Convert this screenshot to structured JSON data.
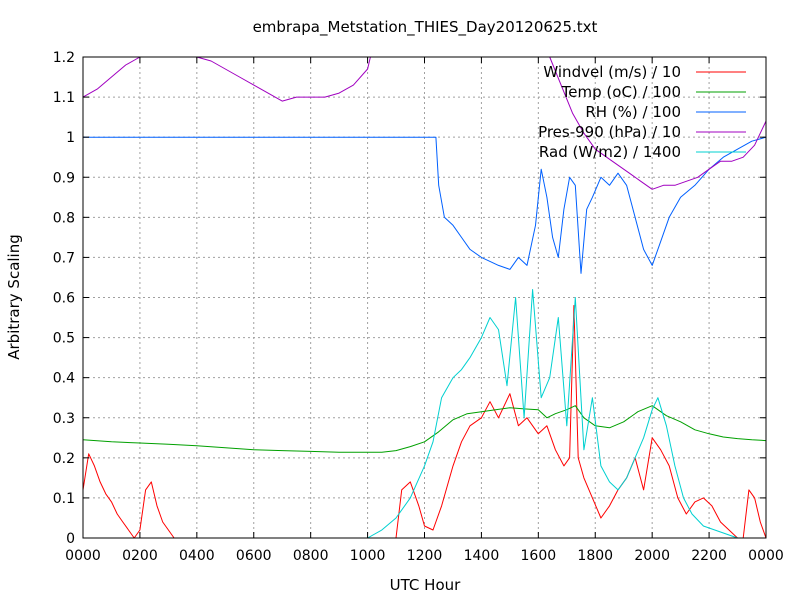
{
  "chart_data": {
    "type": "line",
    "title": "embrapa_Metstation_THIES_Day20120625.txt",
    "xlabel": "UTC Hour",
    "ylabel": "Arbitrary Scaling",
    "xlim": [
      0,
      24
    ],
    "ylim": [
      0,
      1.2
    ],
    "x_tick_labels": [
      "0000",
      "0200",
      "0400",
      "0600",
      "0800",
      "1000",
      "1200",
      "1400",
      "1600",
      "1800",
      "2000",
      "2200",
      "0000"
    ],
    "y_tick_labels": [
      "0",
      "0.1",
      "0.2",
      "0.3",
      "0.4",
      "0.5",
      "0.6",
      "0.7",
      "0.8",
      "0.9",
      "1",
      "1.1",
      "1.2"
    ],
    "grid": true,
    "legend_position": "top-right",
    "series": [
      {
        "name": "Windvel (m/s) / 10",
        "color": "#ff0000",
        "x": [
          0.0,
          0.2,
          0.4,
          0.6,
          0.8,
          1.0,
          1.2,
          1.4,
          1.6,
          1.8,
          2.0,
          2.2,
          2.4,
          2.6,
          2.8,
          3.0,
          3.2,
          11.0,
          11.2,
          11.5,
          11.8,
          12.0,
          12.3,
          12.6,
          13.0,
          13.3,
          13.6,
          14.0,
          14.3,
          14.6,
          15.0,
          15.3,
          15.6,
          16.0,
          16.3,
          16.6,
          16.9,
          17.1,
          17.25,
          17.4,
          17.6,
          17.9,
          18.2,
          18.5,
          18.8,
          19.1,
          19.4,
          19.7,
          20.0,
          20.3,
          20.6,
          20.9,
          21.2,
          21.5,
          21.8,
          22.1,
          22.4,
          22.7,
          23.0,
          23.2,
          23.4,
          23.6,
          23.8,
          24.0
        ],
        "values": [
          0.12,
          0.21,
          0.18,
          0.14,
          0.11,
          0.09,
          0.06,
          0.04,
          0.02,
          0.0,
          0.02,
          0.12,
          0.14,
          0.08,
          0.04,
          0.02,
          0.0,
          0.0,
          0.12,
          0.14,
          0.08,
          0.03,
          0.02,
          0.08,
          0.18,
          0.24,
          0.28,
          0.3,
          0.34,
          0.3,
          0.36,
          0.28,
          0.3,
          0.26,
          0.28,
          0.22,
          0.18,
          0.2,
          0.58,
          0.2,
          0.15,
          0.1,
          0.05,
          0.08,
          0.12,
          0.15,
          0.2,
          0.12,
          0.25,
          0.22,
          0.18,
          0.1,
          0.06,
          0.09,
          0.1,
          0.08,
          0.04,
          0.02,
          0.0,
          0.0,
          0.12,
          0.1,
          0.04,
          0.0
        ]
      },
      {
        "name": "Temp (oC) / 100",
        "color": "#00a000",
        "x": [
          0,
          1,
          2,
          3,
          4,
          5,
          6,
          7,
          8,
          9,
          10,
          10.5,
          11,
          11.5,
          12,
          12.5,
          13,
          13.5,
          14,
          14.5,
          15,
          15.5,
          16,
          16.3,
          16.6,
          17,
          17.3,
          17.6,
          18,
          18.5,
          19,
          19.5,
          20,
          20.5,
          21,
          21.5,
          22,
          22.5,
          23,
          23.5,
          24
        ],
        "values": [
          0.245,
          0.24,
          0.237,
          0.234,
          0.23,
          0.225,
          0.22,
          0.218,
          0.216,
          0.214,
          0.214,
          0.214,
          0.218,
          0.228,
          0.24,
          0.265,
          0.295,
          0.31,
          0.315,
          0.32,
          0.325,
          0.322,
          0.32,
          0.3,
          0.31,
          0.32,
          0.33,
          0.3,
          0.28,
          0.275,
          0.29,
          0.315,
          0.33,
          0.305,
          0.29,
          0.27,
          0.26,
          0.252,
          0.248,
          0.245,
          0.243
        ]
      },
      {
        "name": "RH (%) / 100",
        "color": "#0060ff",
        "x": [
          0,
          2,
          4,
          6,
          8,
          10,
          11,
          12,
          12.4,
          12.5,
          12.7,
          13,
          13.3,
          13.6,
          14,
          14.3,
          14.6,
          15,
          15.3,
          15.6,
          15.9,
          16.1,
          16.3,
          16.5,
          16.7,
          16.9,
          17.1,
          17.3,
          17.5,
          17.7,
          17.9,
          18.2,
          18.5,
          18.8,
          19.1,
          19.4,
          19.7,
          20.0,
          20.3,
          20.6,
          21.0,
          21.5,
          22.0,
          22.5,
          23.0,
          23.5,
          24.0
        ],
        "values": [
          1,
          1,
          1,
          1,
          1,
          1,
          1,
          1,
          1,
          0.88,
          0.8,
          0.78,
          0.75,
          0.72,
          0.7,
          0.69,
          0.68,
          0.67,
          0.7,
          0.68,
          0.78,
          0.92,
          0.85,
          0.75,
          0.7,
          0.82,
          0.9,
          0.88,
          0.66,
          0.82,
          0.85,
          0.9,
          0.88,
          0.91,
          0.88,
          0.8,
          0.72,
          0.68,
          0.74,
          0.8,
          0.85,
          0.88,
          0.92,
          0.95,
          0.97,
          0.99,
          1.0
        ]
      },
      {
        "name": "Pres-990 (hPa) / 10",
        "color": "#a000c0",
        "x": [
          0,
          0.5,
          1,
          1.5,
          2,
          2.5,
          3,
          3.5,
          4,
          4.5,
          5,
          5.5,
          6,
          6.5,
          7,
          7.5,
          8,
          8.5,
          9,
          9.5,
          10,
          10.1,
          16.4,
          16.8,
          17.2,
          17.6,
          18,
          18.4,
          18.8,
          19.2,
          19.6,
          20,
          20.4,
          20.8,
          21.2,
          21.6,
          22,
          22.4,
          22.8,
          23.2,
          23.6,
          24
        ],
        "values": [
          1.1,
          1.12,
          1.15,
          1.18,
          1.2,
          1.2,
          1.2,
          1.2,
          1.2,
          1.19,
          1.17,
          1.15,
          1.13,
          1.11,
          1.09,
          1.1,
          1.1,
          1.1,
          1.11,
          1.13,
          1.17,
          1.2,
          1.2,
          1.13,
          1.06,
          1.01,
          0.97,
          0.95,
          0.93,
          0.91,
          0.89,
          0.87,
          0.88,
          0.88,
          0.89,
          0.9,
          0.92,
          0.94,
          0.94,
          0.95,
          0.98,
          1.04
        ]
      },
      {
        "name": "Rad (W/m2) / 1400",
        "color": "#00d0d0",
        "x": [
          0,
          5,
          9.5,
          10.0,
          10.5,
          11.0,
          11.5,
          12.0,
          12.3,
          12.6,
          13.0,
          13.3,
          13.6,
          14.0,
          14.3,
          14.6,
          14.9,
          15.2,
          15.5,
          15.8,
          16.1,
          16.4,
          16.7,
          17.0,
          17.3,
          17.6,
          17.9,
          18.2,
          18.5,
          18.8,
          19.1,
          19.4,
          19.7,
          20.0,
          20.2,
          20.5,
          20.8,
          21.1,
          21.4,
          21.8,
          22.2,
          22.6,
          23.0,
          24
        ],
        "values": [
          0,
          0,
          0,
          0.0,
          0.02,
          0.05,
          0.1,
          0.18,
          0.24,
          0.35,
          0.4,
          0.42,
          0.45,
          0.5,
          0.55,
          0.52,
          0.38,
          0.6,
          0.3,
          0.62,
          0.35,
          0.4,
          0.55,
          0.28,
          0.6,
          0.22,
          0.35,
          0.18,
          0.14,
          0.12,
          0.15,
          0.2,
          0.25,
          0.32,
          0.35,
          0.28,
          0.18,
          0.1,
          0.06,
          0.03,
          0.02,
          0.01,
          0.0,
          0.0
        ]
      }
    ]
  }
}
